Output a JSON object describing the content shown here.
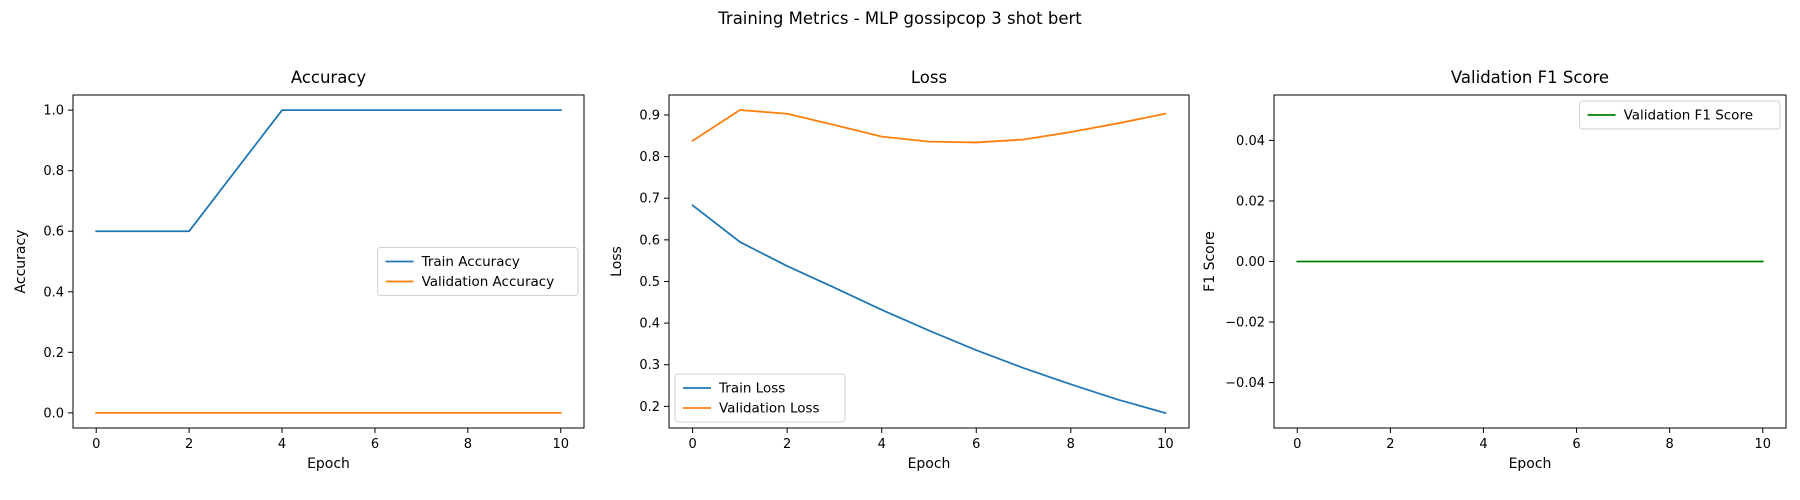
{
  "figure": {
    "suptitle": "Training Metrics - MLP gossipcop 3 shot bert"
  },
  "chart_data": [
    {
      "type": "line",
      "title": "Accuracy",
      "xlabel": "Epoch",
      "ylabel": "Accuracy",
      "xlim": [
        -0.5,
        10.5
      ],
      "ylim": [
        -0.05,
        1.05
      ],
      "xticks": [
        0,
        2,
        4,
        6,
        8,
        10
      ],
      "xtick_labels": [
        "0",
        "2",
        "4",
        "6",
        "8",
        "10"
      ],
      "yticks": [
        0.0,
        0.2,
        0.4,
        0.6,
        0.8,
        1.0
      ],
      "ytick_labels": [
        "0.0",
        "0.2",
        "0.4",
        "0.6",
        "0.8",
        "1.0"
      ],
      "grid": false,
      "legend_position": "center-right",
      "x": [
        0,
        1,
        2,
        3,
        4,
        5,
        6,
        7,
        8,
        9,
        10
      ],
      "series": [
        {
          "name": "Train Accuracy",
          "color": "#1f77b4",
          "values": [
            0.6,
            0.6,
            0.6,
            0.8,
            1.0,
            1.0,
            1.0,
            1.0,
            1.0,
            1.0,
            1.0
          ]
        },
        {
          "name": "Validation Accuracy",
          "color": "#ff7f0e",
          "values": [
            0,
            0,
            0,
            0,
            0,
            0,
            0,
            0,
            0,
            0,
            0
          ]
        }
      ]
    },
    {
      "type": "line",
      "title": "Loss",
      "xlabel": "Epoch",
      "ylabel": "Loss",
      "xlim": [
        -0.5,
        10.5
      ],
      "ylim": [
        0.148,
        0.948
      ],
      "xticks": [
        0,
        2,
        4,
        6,
        8,
        10
      ],
      "xtick_labels": [
        "0",
        "2",
        "4",
        "6",
        "8",
        "10"
      ],
      "yticks": [
        0.2,
        0.3,
        0.4,
        0.5,
        0.6,
        0.7,
        0.8,
        0.9
      ],
      "ytick_labels": [
        "0.2",
        "0.3",
        "0.4",
        "0.5",
        "0.6",
        "0.7",
        "0.8",
        "0.9"
      ],
      "grid": false,
      "legend_position": "lower-left",
      "x": [
        0,
        1,
        2,
        3,
        4,
        5,
        6,
        7,
        8,
        9,
        10
      ],
      "series": [
        {
          "name": "Train Loss",
          "color": "#1f77b4",
          "values": [
            0.683,
            0.595,
            0.537,
            0.485,
            0.432,
            0.382,
            0.335,
            0.292,
            0.253,
            0.216,
            0.184
          ]
        },
        {
          "name": "Validation Loss",
          "color": "#ff7f0e",
          "values": [
            0.838,
            0.912,
            0.903,
            0.876,
            0.848,
            0.836,
            0.834,
            0.841,
            0.859,
            0.88,
            0.903
          ]
        }
      ]
    },
    {
      "type": "line",
      "title": "Validation F1 Score",
      "xlabel": "Epoch",
      "ylabel": "F1 Score",
      "xlim": [
        -0.5,
        10.5
      ],
      "ylim": [
        -0.055,
        0.055
      ],
      "xticks": [
        0,
        2,
        4,
        6,
        8,
        10
      ],
      "xtick_labels": [
        "0",
        "2",
        "4",
        "6",
        "8",
        "10"
      ],
      "yticks": [
        -0.04,
        -0.02,
        0.0,
        0.02,
        0.04
      ],
      "ytick_labels": [
        "−0.04",
        "−0.02",
        "0.00",
        "0.02",
        "0.04"
      ],
      "grid": false,
      "legend_position": "upper-right",
      "x": [
        0,
        1,
        2,
        3,
        4,
        5,
        6,
        7,
        8,
        9,
        10
      ],
      "series": [
        {
          "name": "Validation F1 Score",
          "color": "#008000",
          "values": [
            0,
            0,
            0,
            0,
            0,
            0,
            0,
            0,
            0,
            0,
            0
          ]
        }
      ]
    }
  ]
}
